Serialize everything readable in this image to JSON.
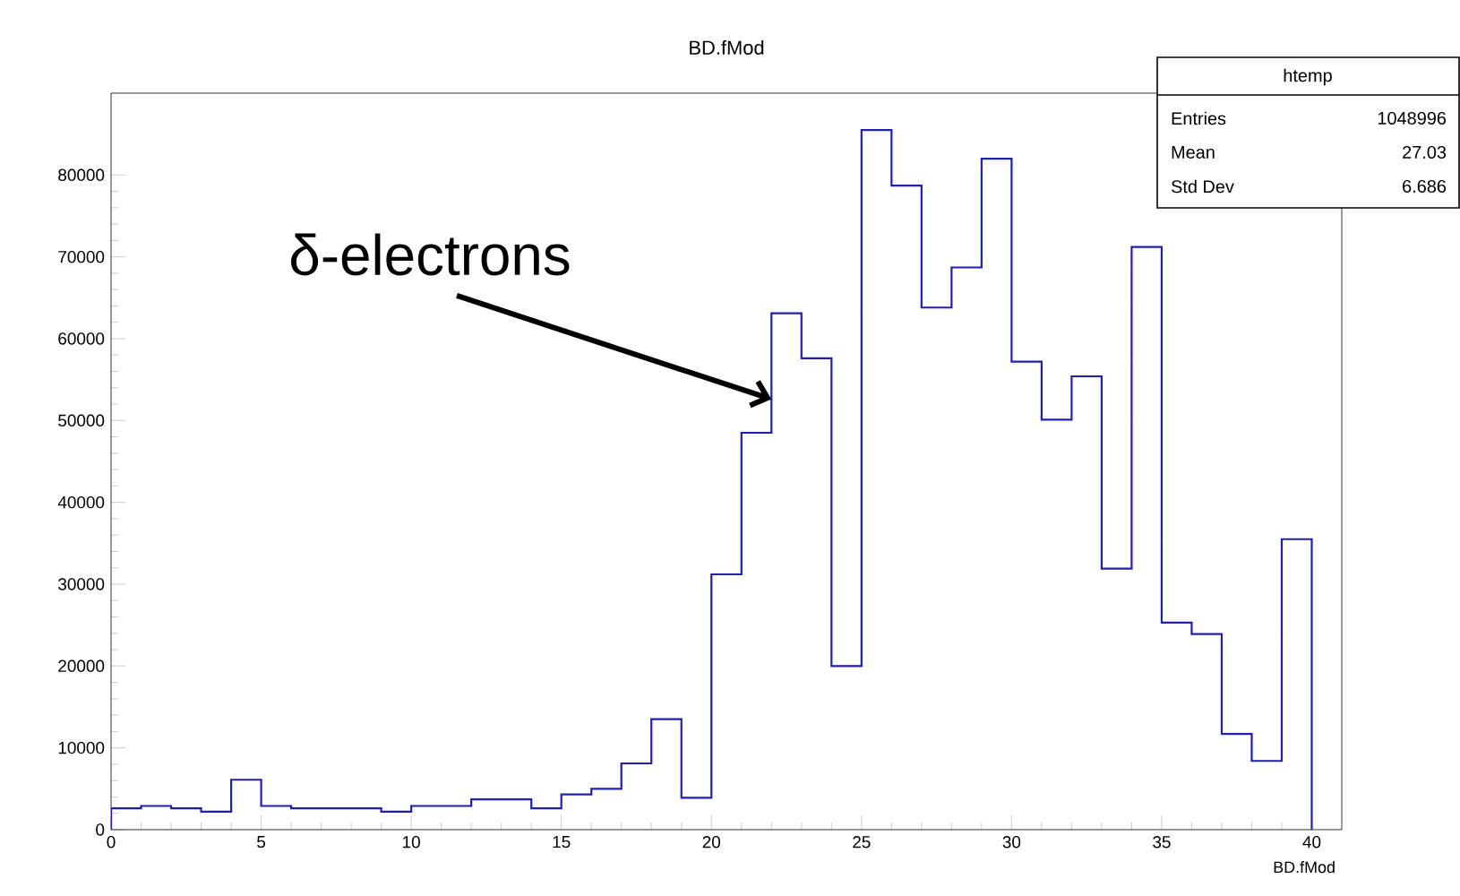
{
  "chart_data": {
    "type": "histogram",
    "title": "BD.fMod",
    "xlabel": "BD.fMod",
    "bins": [
      0,
      1,
      2,
      3,
      4,
      5,
      6,
      7,
      8,
      9,
      10,
      11,
      12,
      13,
      14,
      15,
      16,
      17,
      18,
      19,
      20,
      21,
      22,
      23,
      24,
      25,
      26,
      27,
      28,
      29,
      30,
      31,
      32,
      33,
      34,
      35,
      36,
      37,
      38,
      39,
      40
    ],
    "values": [
      2600,
      2900,
      2600,
      2200,
      6100,
      2900,
      2600,
      2600,
      2600,
      2200,
      2900,
      2900,
      3700,
      3700,
      2600,
      4300,
      5000,
      8100,
      13500,
      3900,
      31200,
      48500,
      63100,
      57600,
      20000,
      85500,
      78700,
      63800,
      68700,
      82000,
      57200,
      50100,
      55400,
      31900,
      71200,
      25300,
      23900,
      11700,
      8400,
      35500
    ],
    "color": "#2020b0",
    "xlim": [
      0,
      41
    ],
    "ylim": [
      0,
      90000
    ],
    "xticks": [
      0,
      5,
      10,
      15,
      20,
      25,
      30,
      35,
      40
    ],
    "yticks": [
      0,
      10000,
      20000,
      30000,
      40000,
      50000,
      60000,
      70000,
      80000
    ],
    "annotations": [
      {
        "text": "δ-electrons",
        "x": 22,
        "y": 52600
      },
      "htemp",
      "Entries",
      "1048996",
      "Mean",
      "27.03",
      "Std Dev",
      "6.686"
    ]
  }
}
